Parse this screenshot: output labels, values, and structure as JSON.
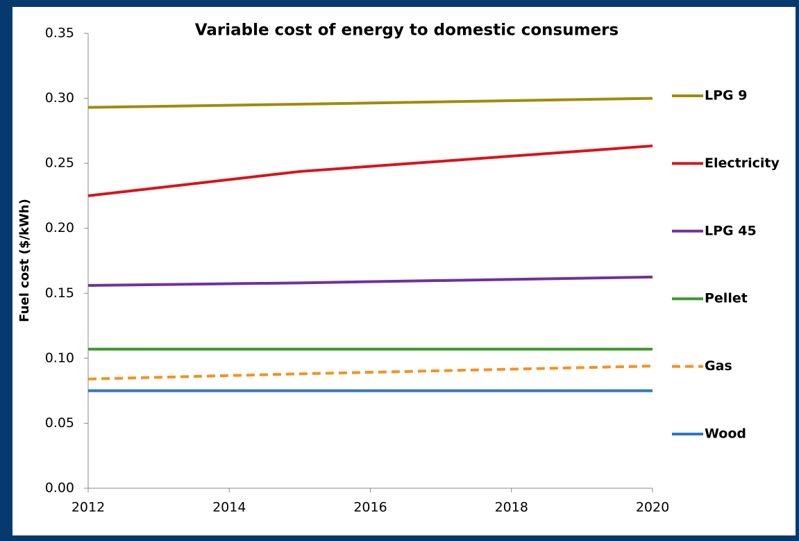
{
  "chart_data": {
    "type": "line",
    "title": "Variable cost of energy to domestic consumers",
    "y_label": "Fuel cost ($/kWh)",
    "x": [
      2012,
      2015,
      2020
    ],
    "xlim": [
      2012,
      2020
    ],
    "xticks": [
      2012,
      2014,
      2016,
      2018,
      2020
    ],
    "ylim": [
      0,
      0.35
    ],
    "yticks": [
      {
        "value": 0,
        "label": "0.00"
      },
      {
        "value": 0.05,
        "label": "0.05"
      },
      {
        "value": 0.1,
        "label": "0.10"
      },
      {
        "value": 0.15,
        "label": "0.15"
      },
      {
        "value": 0.2,
        "label": "0.20"
      },
      {
        "value": 0.25,
        "label": "0.25"
      },
      {
        "value": 0.3,
        "label": "0.30"
      },
      {
        "value": 0.35,
        "label": "0.35"
      }
    ],
    "grid": false,
    "legend": "right",
    "series": [
      {
        "name": "LPG 9",
        "color": "#9e8c0c",
        "values": [
          0.293,
          0.2955,
          0.3
        ]
      },
      {
        "name": "Electricity",
        "color": "#d7141b",
        "values": [
          0.225,
          0.2437,
          0.2634
        ]
      },
      {
        "name": "LPG 45",
        "color": "#7030a0",
        "values": [
          0.156,
          0.158,
          0.1625
        ]
      },
      {
        "name": "Pellet",
        "color": "#3a9a28",
        "values": [
          0.107,
          0.107,
          0.107
        ]
      },
      {
        "name": "Gas",
        "color": "#f7901e",
        "line_style": "dashed",
        "values": [
          0.084,
          0.088,
          0.094
        ]
      },
      {
        "name": "Wood",
        "color": "#2f75c8",
        "values": [
          0.075,
          0.075,
          0.075
        ]
      }
    ]
  }
}
